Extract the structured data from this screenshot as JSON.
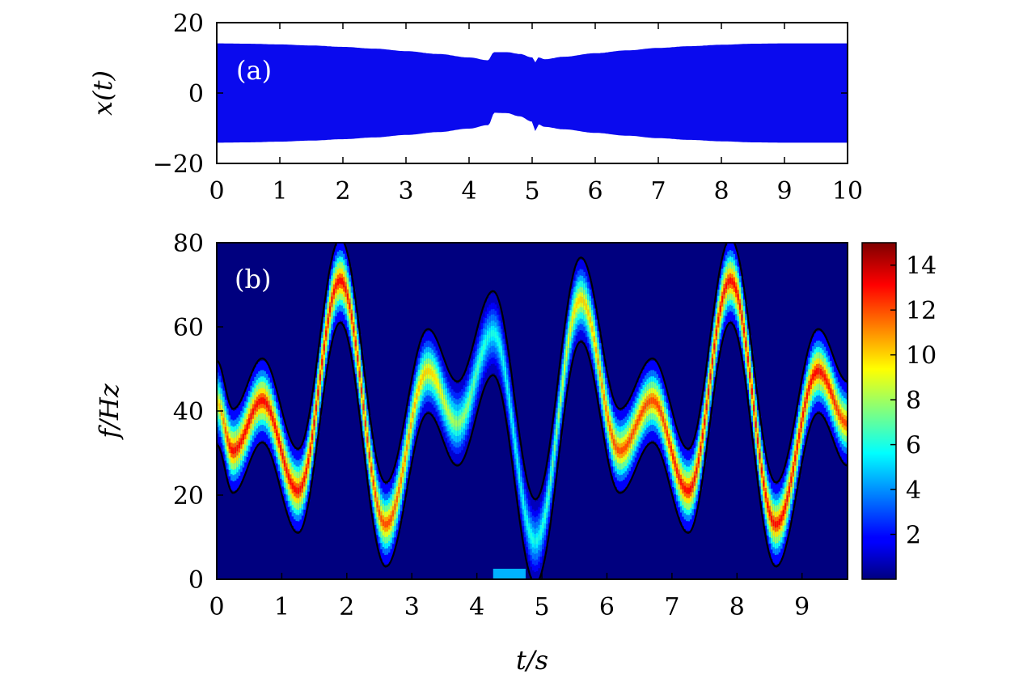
{
  "chart_data": [
    {
      "panel": "a",
      "type": "area",
      "panel_tag": "(a)",
      "ylabel": "x(t)",
      "xlim": [
        0,
        10
      ],
      "ylim": [
        -20,
        20
      ],
      "xticks": [
        "0",
        "1",
        "2",
        "3",
        "4",
        "5",
        "6",
        "7",
        "8",
        "9",
        "10"
      ],
      "yticks": [
        "20",
        "0",
        "−20"
      ],
      "fill_color": "#0a0aee",
      "series": [
        {
          "x": [
            0,
            0.5,
            1,
            1.5,
            2,
            2.5,
            3,
            3.5,
            4,
            4.3,
            4.4,
            4.6,
            4.8,
            5.0,
            5.05,
            5.1,
            5.2,
            5.5,
            6,
            6.5,
            7,
            7.5,
            8,
            8.5,
            9,
            9.5,
            10
          ],
          "upper": [
            14,
            13.9,
            13.7,
            13.4,
            13.0,
            12.5,
            11.8,
            11.0,
            10.0,
            9.2,
            11.5,
            11.5,
            11.0,
            10.0,
            8.5,
            10.0,
            9.5,
            10.2,
            11.2,
            12.0,
            12.7,
            13.2,
            13.6,
            13.9,
            14.0,
            14.0,
            14.0
          ],
          "lower": [
            -14,
            -13.9,
            -13.7,
            -13.4,
            -13.0,
            -12.5,
            -11.8,
            -11.0,
            -10.0,
            -9.0,
            -5.5,
            -5.6,
            -6.5,
            -8.0,
            -10.5,
            -8.8,
            -9.5,
            -10.2,
            -11.2,
            -12.0,
            -12.7,
            -13.2,
            -13.6,
            -13.9,
            -14.0,
            -14.0,
            -14.0
          ]
        }
      ]
    },
    {
      "panel": "b",
      "type": "heatmap",
      "panel_tag": "(b)",
      "xlabel": "t/s",
      "ylabel": "f/Hz",
      "xlim": [
        0,
        9.7
      ],
      "ylim": [
        0,
        80
      ],
      "xticks": [
        "0",
        "1",
        "2",
        "3",
        "4",
        "5",
        "6",
        "7",
        "8",
        "9"
      ],
      "yticks": [
        "0",
        "20",
        "40",
        "60",
        "80"
      ],
      "colorbar": {
        "ticks": [
          "2",
          "4",
          "6",
          "8",
          "10",
          "12",
          "14"
        ],
        "range": [
          0,
          15
        ],
        "colormap": "jet"
      },
      "ridge": {
        "t": [
          0,
          0.25,
          0.7,
          1.25,
          1.9,
          2.6,
          3.25,
          3.7,
          4.25,
          4.9,
          5.6,
          6.2,
          6.7,
          7.25,
          7.9,
          8.6,
          9.25,
          9.7
        ],
        "f": [
          42,
          30.5,
          42.5,
          21,
          71,
          13,
          49.5,
          37,
          58.5,
          9,
          66.5,
          30.5,
          42.5,
          21,
          71,
          13,
          49.5,
          37
        ],
        "amplitude": [
          10,
          13,
          13,
          13,
          13,
          12,
          10,
          8,
          6,
          6,
          10,
          12,
          12,
          13,
          13,
          13,
          13,
          12
        ]
      },
      "band_halfwidth_hz": 5,
      "blob": {
        "t": [
          4.25,
          4.75
        ],
        "f": [
          0,
          2.5
        ],
        "value": 4.5
      }
    }
  ]
}
